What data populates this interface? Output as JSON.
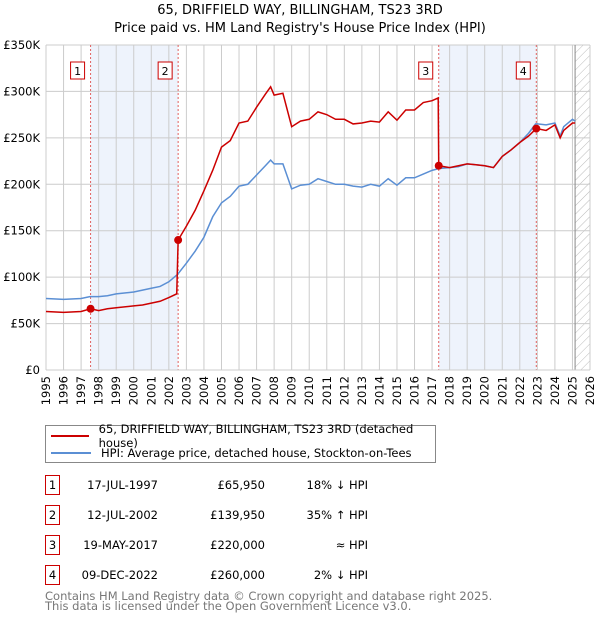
{
  "title": "65, DRIFFIELD WAY, BILLINGHAM, TS23 3RD",
  "subtitle": "Price paid vs. HM Land Registry's House Price Index (HPI)",
  "chart_data": {
    "type": "line",
    "title": "65, DRIFFIELD WAY, BILLINGHAM, TS23 3RD — Price paid vs. HM Land Registry's House Price Index (HPI)",
    "xlim": [
      1995,
      2026
    ],
    "ylim": [
      0,
      350000
    ],
    "xticks": [
      "1995",
      "1996",
      "1997",
      "1998",
      "1999",
      "2000",
      "2001",
      "2002",
      "2003",
      "2004",
      "2005",
      "2006",
      "2007",
      "2008",
      "2009",
      "2010",
      "2011",
      "2012",
      "2013",
      "2014",
      "2015",
      "2016",
      "2017",
      "2018",
      "2019",
      "2020",
      "2021",
      "2022",
      "2023",
      "2024",
      "2025",
      "2026"
    ],
    "yticks": [
      {
        "v": 0,
        "label": "£0"
      },
      {
        "v": 50000,
        "label": "£50K"
      },
      {
        "v": 100000,
        "label": "£100K"
      },
      {
        "v": 150000,
        "label": "£150K"
      },
      {
        "v": 200000,
        "label": "£200K"
      },
      {
        "v": 250000,
        "label": "£250K"
      },
      {
        "v": 300000,
        "label": "£300K"
      },
      {
        "v": 350000,
        "label": "£350K"
      }
    ],
    "grid": true,
    "legend_position": "bottom",
    "data_end": 2025.15,
    "series": [
      {
        "name": "65, DRIFFIELD WAY, BILLINGHAM, TS23 3RD (detached house)",
        "color": "#cc0000",
        "x": [
          1995,
          1996,
          1997,
          1997.54,
          1998,
          1998.5,
          1999,
          2000,
          2000.5,
          2001,
          2001.5,
          2002,
          2002.45,
          2002.53,
          2003,
          2003.5,
          2004,
          2004.5,
          2005,
          2005.5,
          2006,
          2006.5,
          2007,
          2007.5,
          2007.8,
          2008,
          2008.5,
          2009,
          2009.5,
          2010,
          2010.5,
          2011,
          2011.5,
          2012,
          2012.5,
          2013,
          2013.5,
          2014,
          2014.5,
          2015,
          2015.5,
          2016,
          2016.5,
          2017,
          2017.35,
          2017.38,
          2018,
          2018.5,
          2019,
          2019.5,
          2020,
          2020.5,
          2021,
          2021.5,
          2022,
          2022.5,
          2022.94,
          2023.5,
          2024,
          2024.3,
          2024.5,
          2025,
          2025.15
        ],
        "y": [
          63000,
          62000,
          63000,
          65950,
          64000,
          66000,
          67000,
          69000,
          70000,
          72000,
          74000,
          78000,
          82000,
          139950,
          155000,
          172000,
          193000,
          215000,
          240000,
          247000,
          266000,
          268000,
          283000,
          297000,
          305000,
          296000,
          298000,
          262000,
          268000,
          270000,
          278000,
          275000,
          270000,
          270000,
          265000,
          266000,
          268000,
          267000,
          278000,
          269000,
          280000,
          280000,
          288000,
          290000,
          293000,
          220000,
          218000,
          220000,
          222000,
          221000,
          220000,
          218000,
          230000,
          237000,
          245000,
          252000,
          260000,
          258000,
          264000,
          250000,
          258000,
          266000,
          266000
        ]
      },
      {
        "name": "HPI: Average price, detached house, Stockton-on-Tees",
        "color": "#5b8fd4",
        "x": [
          1995,
          1996,
          1997,
          1997.5,
          1998,
          1998.5,
          1999,
          2000,
          2000.5,
          2001,
          2001.5,
          2002,
          2002.5,
          2003,
          2003.5,
          2004,
          2004.5,
          2005,
          2005.5,
          2006,
          2006.5,
          2007,
          2007.5,
          2007.8,
          2008,
          2008.5,
          2009,
          2009.5,
          2010,
          2010.5,
          2011,
          2011.5,
          2012,
          2012.5,
          2013,
          2013.5,
          2014,
          2014.5,
          2015,
          2015.5,
          2016,
          2016.5,
          2017,
          2017.4,
          2018,
          2018.5,
          2019,
          2019.5,
          2020,
          2020.5,
          2021,
          2021.5,
          2022,
          2022.5,
          2022.9,
          2023,
          2023.5,
          2024,
          2024.3,
          2024.5,
          2025,
          2025.15
        ],
        "y": [
          77000,
          76000,
          77000,
          79000,
          79000,
          80000,
          82000,
          84000,
          86000,
          88000,
          90000,
          95000,
          103000,
          115000,
          128000,
          143000,
          165000,
          180000,
          187000,
          198000,
          200000,
          210000,
          220000,
          226000,
          222000,
          222000,
          195000,
          199000,
          200000,
          206000,
          203000,
          200000,
          200000,
          198000,
          197000,
          200000,
          198000,
          206000,
          199000,
          207000,
          207000,
          211000,
          215000,
          217000,
          218000,
          219000,
          222000,
          221000,
          220000,
          218000,
          230000,
          237000,
          245000,
          255000,
          265000,
          265000,
          264000,
          266000,
          252000,
          262000,
          270000,
          268000
        ]
      }
    ],
    "sales": [
      {
        "n": "1",
        "x": 1997.54,
        "price": 65950
      },
      {
        "n": "2",
        "x": 2002.53,
        "price": 139950
      },
      {
        "n": "3",
        "x": 2017.38,
        "price": 220000
      },
      {
        "n": "4",
        "x": 2022.94,
        "price": 260000
      }
    ]
  },
  "legend": {
    "property": "65, DRIFFIELD WAY, BILLINGHAM, TS23 3RD (detached house)",
    "hpi": "HPI: Average price, detached house, Stockton-on-Tees"
  },
  "transactions": [
    {
      "n": "1",
      "date": "17-JUL-1997",
      "price": "£65,950",
      "hpi": "18% ↓ HPI"
    },
    {
      "n": "2",
      "date": "12-JUL-2002",
      "price": "£139,950",
      "hpi": "35% ↑ HPI"
    },
    {
      "n": "3",
      "date": "19-MAY-2017",
      "price": "£220,000",
      "hpi": "≈ HPI"
    },
    {
      "n": "4",
      "date": "09-DEC-2022",
      "price": "£260,000",
      "hpi": "2% ↓ HPI"
    }
  ],
  "footer": {
    "line1": "Contains HM Land Registry data © Crown copyright and database right 2025.",
    "line2": "This data is licensed under the Open Government Licence v3.0."
  }
}
